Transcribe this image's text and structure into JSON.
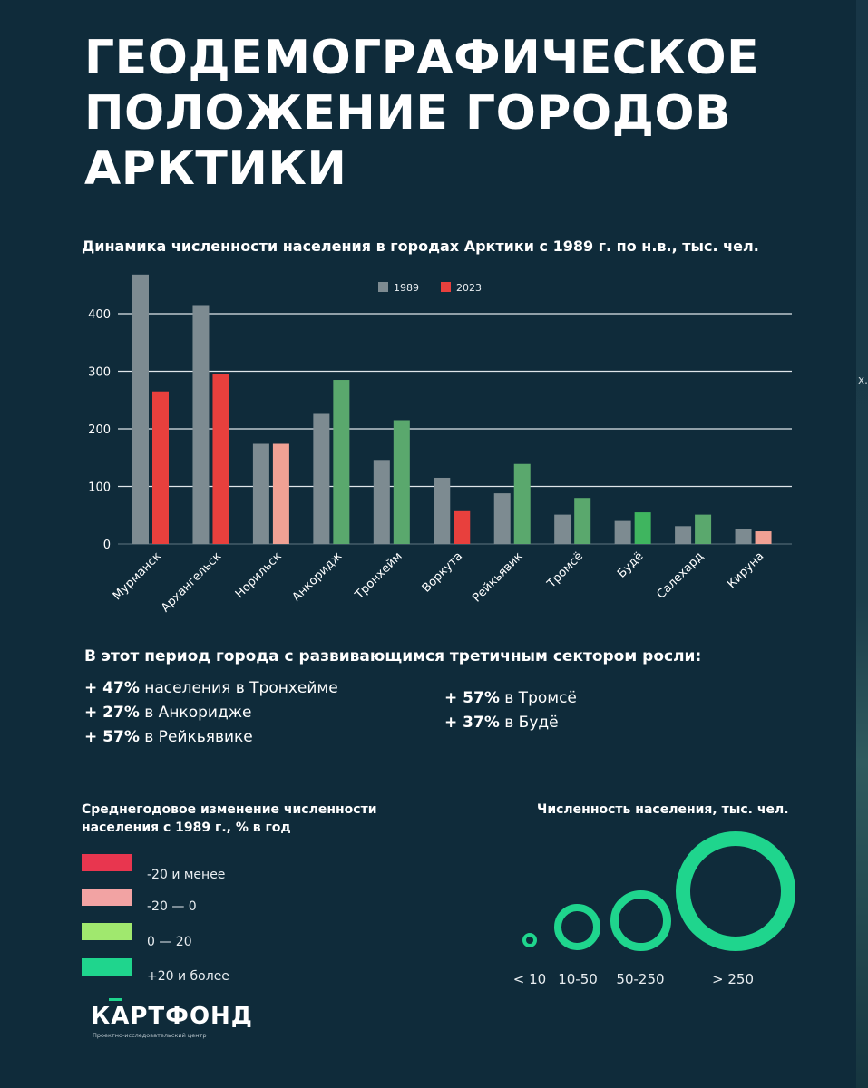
{
  "title_lines": [
    "ГЕОДЕМОГРАФИЧЕСКОЕ",
    "ПОЛОЖЕНИЕ ГОРОДОВ",
    "АРКТИКИ"
  ],
  "colors": {
    "background": "#0f2b3a",
    "bar_1989": "#7d8b91",
    "decline_strong": "#e8403d",
    "decline_mild": "#f0a194",
    "growth_mild": "#5aa86d",
    "growth_strong": "#1fd58d",
    "ring": "#1fd58d"
  },
  "chart_data": {
    "type": "bar",
    "title": "Динамика численности населения в городах Арктики с 1989 г. по н.в., тыс. чел.",
    "categories": [
      "Мурманск",
      "Архангельск",
      "Норильск",
      "Анкоридж",
      "Тронхейм",
      "Воркута",
      "Рейкьявик",
      "Тромсё",
      "Будё",
      "Салехард",
      "Кируна"
    ],
    "series": [
      {
        "name": "1989",
        "values": [
          468,
          415,
          174,
          226,
          146,
          115,
          88,
          51,
          40,
          31,
          26
        ]
      },
      {
        "name": "2023",
        "values": [
          265,
          296,
          174,
          285,
          215,
          57,
          139,
          80,
          55,
          51,
          22
        ]
      }
    ],
    "bar_2023_colors": [
      "#e8403d",
      "#e8403d",
      "#f0a194",
      "#5aa86d",
      "#5aa86d",
      "#e8403d",
      "#5aa86d",
      "#5aa86d",
      "#3fb55f",
      "#5aa86d",
      "#f0a194"
    ],
    "yticks": [
      0,
      100,
      200,
      300,
      400
    ],
    "ylim": [
      0,
      480
    ],
    "legend": [
      "1989",
      "2023"
    ],
    "xlabel": "",
    "ylabel": ""
  },
  "growth": {
    "title": "В этот период города с развивающимся третичным сектором росли:",
    "left": [
      {
        "value": "+ 47%",
        "text": " населения в Тронхейме"
      },
      {
        "value": "+ 27%",
        "text": " в Анкоридже"
      },
      {
        "value": "+ 57%",
        "text": " в Рейкьявике"
      }
    ],
    "right": [
      {
        "value": "+ 57%",
        "text": " в Тромсё"
      },
      {
        "value": "+ 37%",
        "text": " в Будё"
      }
    ]
  },
  "change_legend": {
    "title": "Среднегодовое изменение численности населения с 1989 г., % в год",
    "items": [
      {
        "label": "-20 и менее",
        "color": "#e8364f"
      },
      {
        "label": "-20 — 0",
        "color": "#f2a3a3"
      },
      {
        "label": "0 — 20",
        "color": "#a0e86e"
      },
      {
        "label": "+20 и более",
        "color": "#1fd58d"
      }
    ]
  },
  "size_legend": {
    "title": "Численность населения, тыс. чел.",
    "items": [
      "< 10",
      "10-50",
      "50-250",
      "> 250"
    ]
  },
  "logo": {
    "name": "КАРТФОНД",
    "subtitle": "Проектно-исследовательский центр"
  },
  "edge_glyph": "x."
}
